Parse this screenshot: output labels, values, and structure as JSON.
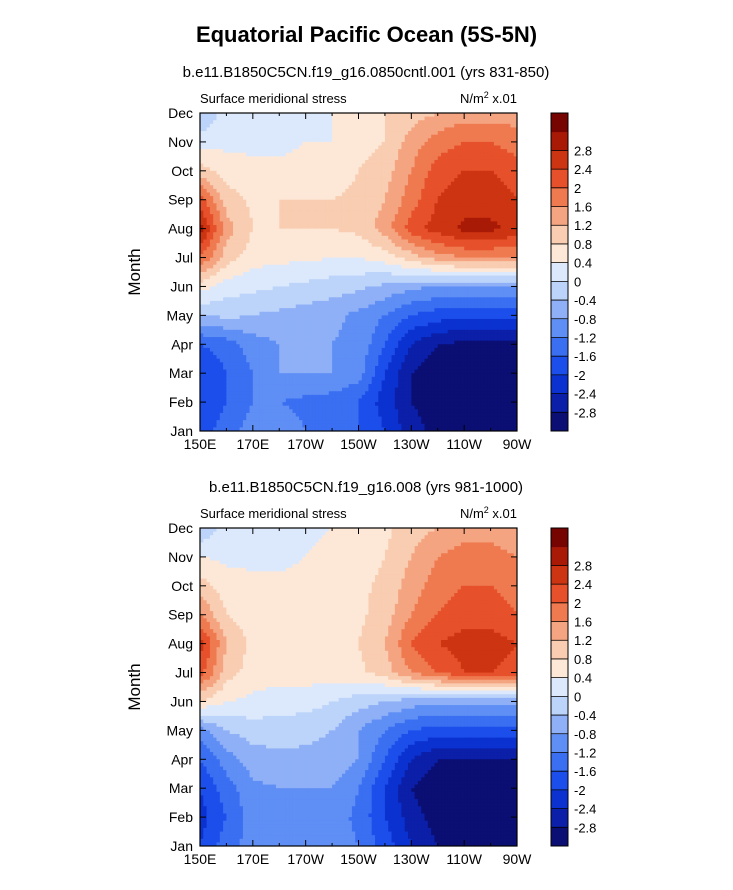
{
  "figure": {
    "title": "Equatorial Pacific Ocean (5S-5N)"
  },
  "chart_data": [
    {
      "type": "heatmap",
      "title": "b.e11.B1850C5CN.f19_g16.0850cntl.001 (yrs 831-850)",
      "left_label": "Surface meridional stress",
      "right_label": "N/m",
      "right_label_exp": "2",
      "right_label_suffix": " x.01",
      "xlabel": "",
      "ylabel": "Month",
      "x_ticks": [
        "150E",
        "170E",
        "170W",
        "150W",
        "130W",
        "110W",
        "90W"
      ],
      "x_tick_values": [
        150,
        170,
        190,
        210,
        230,
        250,
        270
      ],
      "xlim": [
        150,
        270
      ],
      "y_ticks": [
        "Jan",
        "Feb",
        "Mar",
        "Apr",
        "May",
        "Jun",
        "Jul",
        "Aug",
        "Sep",
        "Oct",
        "Nov",
        "Dec"
      ],
      "ylim": [
        1,
        12
      ],
      "x": [
        150,
        160,
        170,
        180,
        190,
        200,
        210,
        220,
        230,
        240,
        250,
        260,
        270
      ],
      "values": [
        [
          -1.8,
          -1.4,
          -1.0,
          -1.0,
          -1.2,
          -1.4,
          -1.6,
          -2.0,
          -2.6,
          -3.0,
          -3.0,
          -3.0,
          -3.0
        ],
        [
          -2.0,
          -1.6,
          -1.2,
          -1.2,
          -1.3,
          -1.4,
          -1.6,
          -2.2,
          -2.8,
          -3.0,
          -3.0,
          -3.0,
          -3.0
        ],
        [
          -2.0,
          -1.6,
          -1.2,
          -0.8,
          -0.8,
          -0.8,
          -1.0,
          -2.0,
          -2.8,
          -3.1,
          -3.2,
          -3.2,
          -3.2
        ],
        [
          -1.6,
          -1.4,
          -1.0,
          -0.8,
          -0.8,
          -0.8,
          -0.9,
          -1.6,
          -2.4,
          -2.8,
          -2.9,
          -2.9,
          -2.9
        ],
        [
          -0.4,
          -0.3,
          -0.4,
          -0.5,
          -0.6,
          -0.7,
          -0.9,
          -1.2,
          -1.6,
          -1.8,
          -1.9,
          -1.9,
          -1.9
        ],
        [
          0.6,
          0.2,
          0.1,
          0.0,
          -0.1,
          -0.2,
          -0.3,
          -0.5,
          -0.7,
          -0.8,
          -0.8,
          -0.8,
          -0.8
        ],
        [
          2.0,
          1.0,
          0.6,
          0.5,
          0.5,
          0.4,
          0.4,
          0.6,
          1.0,
          1.4,
          1.6,
          1.6,
          1.6
        ],
        [
          3.0,
          1.4,
          0.8,
          0.8,
          0.8,
          0.8,
          0.9,
          1.4,
          2.2,
          2.6,
          2.9,
          2.9,
          2.7
        ],
        [
          2.2,
          1.0,
          0.7,
          0.8,
          0.8,
          0.8,
          0.9,
          1.2,
          1.8,
          2.4,
          2.6,
          2.6,
          2.4
        ],
        [
          1.0,
          0.6,
          0.5,
          0.5,
          0.5,
          0.6,
          0.8,
          1.0,
          1.6,
          2.2,
          2.4,
          2.4,
          2.2
        ],
        [
          0.2,
          0.3,
          0.3,
          0.3,
          0.4,
          0.4,
          0.6,
          0.8,
          1.4,
          1.8,
          2.0,
          2.0,
          1.8
        ],
        [
          -0.4,
          0.2,
          0.3,
          0.3,
          0.3,
          0.4,
          0.6,
          0.8,
          1.0,
          1.2,
          1.4,
          1.4,
          1.4
        ]
      ]
    },
    {
      "type": "heatmap",
      "title": "b.e11.B1850C5CN.f19_g16.008 (yrs 981-1000)",
      "left_label": "Surface meridional stress",
      "right_label": "N/m",
      "right_label_exp": "2",
      "right_label_suffix": " x.01",
      "xlabel": "",
      "ylabel": "Month",
      "x_ticks": [
        "150E",
        "170E",
        "170W",
        "150W",
        "130W",
        "110W",
        "90W"
      ],
      "x_tick_values": [
        150,
        170,
        190,
        210,
        230,
        250,
        270
      ],
      "xlim": [
        150,
        270
      ],
      "y_ticks": [
        "Jan",
        "Feb",
        "Mar",
        "Apr",
        "May",
        "Jun",
        "Jul",
        "Aug",
        "Sep",
        "Oct",
        "Nov",
        "Dec"
      ],
      "ylim": [
        1,
        12
      ],
      "x": [
        150,
        160,
        170,
        180,
        190,
        200,
        210,
        220,
        230,
        240,
        250,
        260,
        270
      ],
      "values": [
        [
          -2.0,
          -1.4,
          -1.0,
          -0.8,
          -0.8,
          -1.0,
          -1.2,
          -1.8,
          -2.4,
          -2.8,
          -3.0,
          -3.0,
          -3.0
        ],
        [
          -2.2,
          -1.6,
          -1.0,
          -0.9,
          -0.9,
          -1.0,
          -1.3,
          -2.0,
          -2.6,
          -3.0,
          -3.0,
          -3.0,
          -3.0
        ],
        [
          -2.0,
          -1.4,
          -0.9,
          -0.8,
          -0.8,
          -0.8,
          -1.2,
          -2.0,
          -2.8,
          -3.2,
          -3.2,
          -3.2,
          -3.2
        ],
        [
          -1.6,
          -1.0,
          -0.6,
          -0.5,
          -0.5,
          -0.5,
          -0.8,
          -1.6,
          -2.4,
          -2.8,
          -2.8,
          -2.8,
          -2.8
        ],
        [
          -1.0,
          -0.4,
          -0.2,
          -0.2,
          -0.3,
          -0.4,
          -0.8,
          -1.2,
          -1.6,
          -1.8,
          -1.8,
          -1.8,
          -1.8
        ],
        [
          0.8,
          0.4,
          0.3,
          0.2,
          0.2,
          0.0,
          -0.2,
          -0.4,
          -0.6,
          -0.7,
          -0.7,
          -0.7,
          -0.7
        ],
        [
          2.2,
          1.0,
          0.6,
          0.6,
          0.6,
          0.6,
          0.7,
          1.0,
          1.6,
          2.0,
          2.4,
          2.4,
          2.2
        ],
        [
          2.6,
          1.2,
          0.7,
          0.7,
          0.7,
          0.7,
          0.8,
          1.2,
          2.0,
          2.4,
          2.6,
          2.6,
          2.4
        ],
        [
          1.6,
          0.8,
          0.6,
          0.6,
          0.6,
          0.6,
          0.7,
          1.0,
          1.6,
          2.0,
          2.2,
          2.2,
          2.0
        ],
        [
          1.0,
          0.6,
          0.5,
          0.5,
          0.5,
          0.6,
          0.7,
          0.9,
          1.4,
          1.8,
          2.0,
          2.0,
          1.8
        ],
        [
          0.4,
          0.3,
          0.3,
          0.3,
          0.4,
          0.5,
          0.6,
          0.8,
          1.2,
          1.6,
          1.8,
          1.8,
          1.6
        ],
        [
          -0.4,
          0.2,
          0.3,
          0.3,
          0.3,
          0.4,
          0.5,
          0.7,
          1.0,
          1.2,
          1.4,
          1.4,
          1.2
        ]
      ]
    }
  ],
  "colorbar": {
    "levels": [
      -2.8,
      -2.4,
      -2,
      -1.6,
      -1.2,
      -0.8,
      -0.4,
      0,
      0.4,
      0.8,
      1.2,
      1.6,
      2,
      2.4,
      2.8
    ],
    "labels": [
      "-2.8",
      "-2.4",
      "-2",
      "-1.6",
      "-1.2",
      "-0.8",
      "-0.4",
      "0",
      "0.4",
      "0.8",
      "1.2",
      "1.6",
      "2",
      "2.4",
      "2.8"
    ],
    "colors": [
      "#0b0f73",
      "#0b1fa8",
      "#0b32d0",
      "#1c4eeb",
      "#3a6ff2",
      "#5f8ff5",
      "#8fb0f7",
      "#bdd4fa",
      "#dce9fc",
      "#fde8d8",
      "#f9cdb1",
      "#f5a481",
      "#ef7a50",
      "#e6502a",
      "#cd3412",
      "#a81a06",
      "#760400"
    ]
  }
}
